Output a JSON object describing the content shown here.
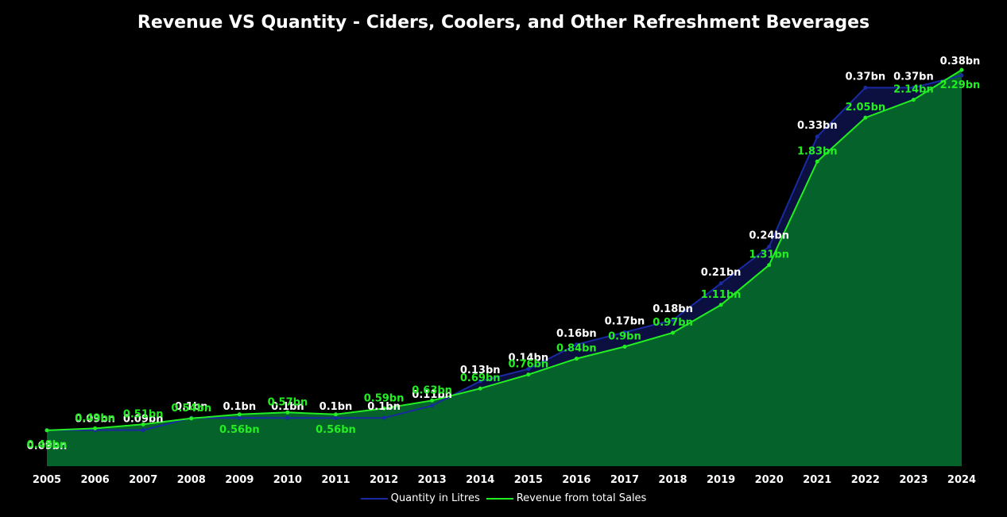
{
  "chart_data": {
    "type": "area",
    "title": "Revenue VS Quantity - Ciders, Coolers, and Other Refreshment Beverages",
    "categories": [
      "2005",
      "2006",
      "2007",
      "2008",
      "2009",
      "2010",
      "2011",
      "2012",
      "2013",
      "2014",
      "2015",
      "2016",
      "2017",
      "2018",
      "2019",
      "2020",
      "2021",
      "2022",
      "2023",
      "2024"
    ],
    "series": [
      {
        "name": "Quantity in Litres",
        "color": "#1a2aa0",
        "fill": "#0b1040",
        "values": [
          0.09,
          0.09,
          0.09,
          0.1,
          0.1,
          0.1,
          0.1,
          0.1,
          0.11,
          0.13,
          0.14,
          0.16,
          0.17,
          0.18,
          0.21,
          0.24,
          0.33,
          0.37,
          0.37,
          0.38
        ],
        "labels": [
          "0.09bn",
          "0.09bn",
          "0.09bn",
          "0.1bn",
          "0.1bn",
          "0.1bn",
          "0.1bn",
          "0.1bn",
          "0.11bn",
          "0.13bn",
          "0.14bn",
          "0.16bn",
          "0.17bn",
          "0.18bn",
          "0.21bn",
          "0.24bn",
          "0.33bn",
          "0.37bn",
          "0.37bn",
          "0.38bn"
        ]
      },
      {
        "name": "Revenue from total Sales",
        "color": "#22ee22",
        "fill": "#05622a",
        "values": [
          0.48,
          0.49,
          0.51,
          0.54,
          0.56,
          0.57,
          0.56,
          0.59,
          0.63,
          0.69,
          0.76,
          0.84,
          0.9,
          0.97,
          1.11,
          1.31,
          1.83,
          2.05,
          2.14,
          2.29
        ],
        "labels": [
          "0.48bn",
          "0.49bn",
          "0.51bn",
          "0.54bn",
          "0.56bn",
          "0.57bn",
          "0.56bn",
          "0.59bn",
          "0.63bn",
          "0.69bn",
          "0.76bn",
          "0.84bn",
          "0.9bn",
          "0.97bn",
          "1.11bn",
          "1.31bn",
          "1.83bn",
          "2.05bn",
          "2.14bn",
          "2.29bn"
        ]
      }
    ],
    "legend_position": "bottom-center",
    "grid": false
  }
}
